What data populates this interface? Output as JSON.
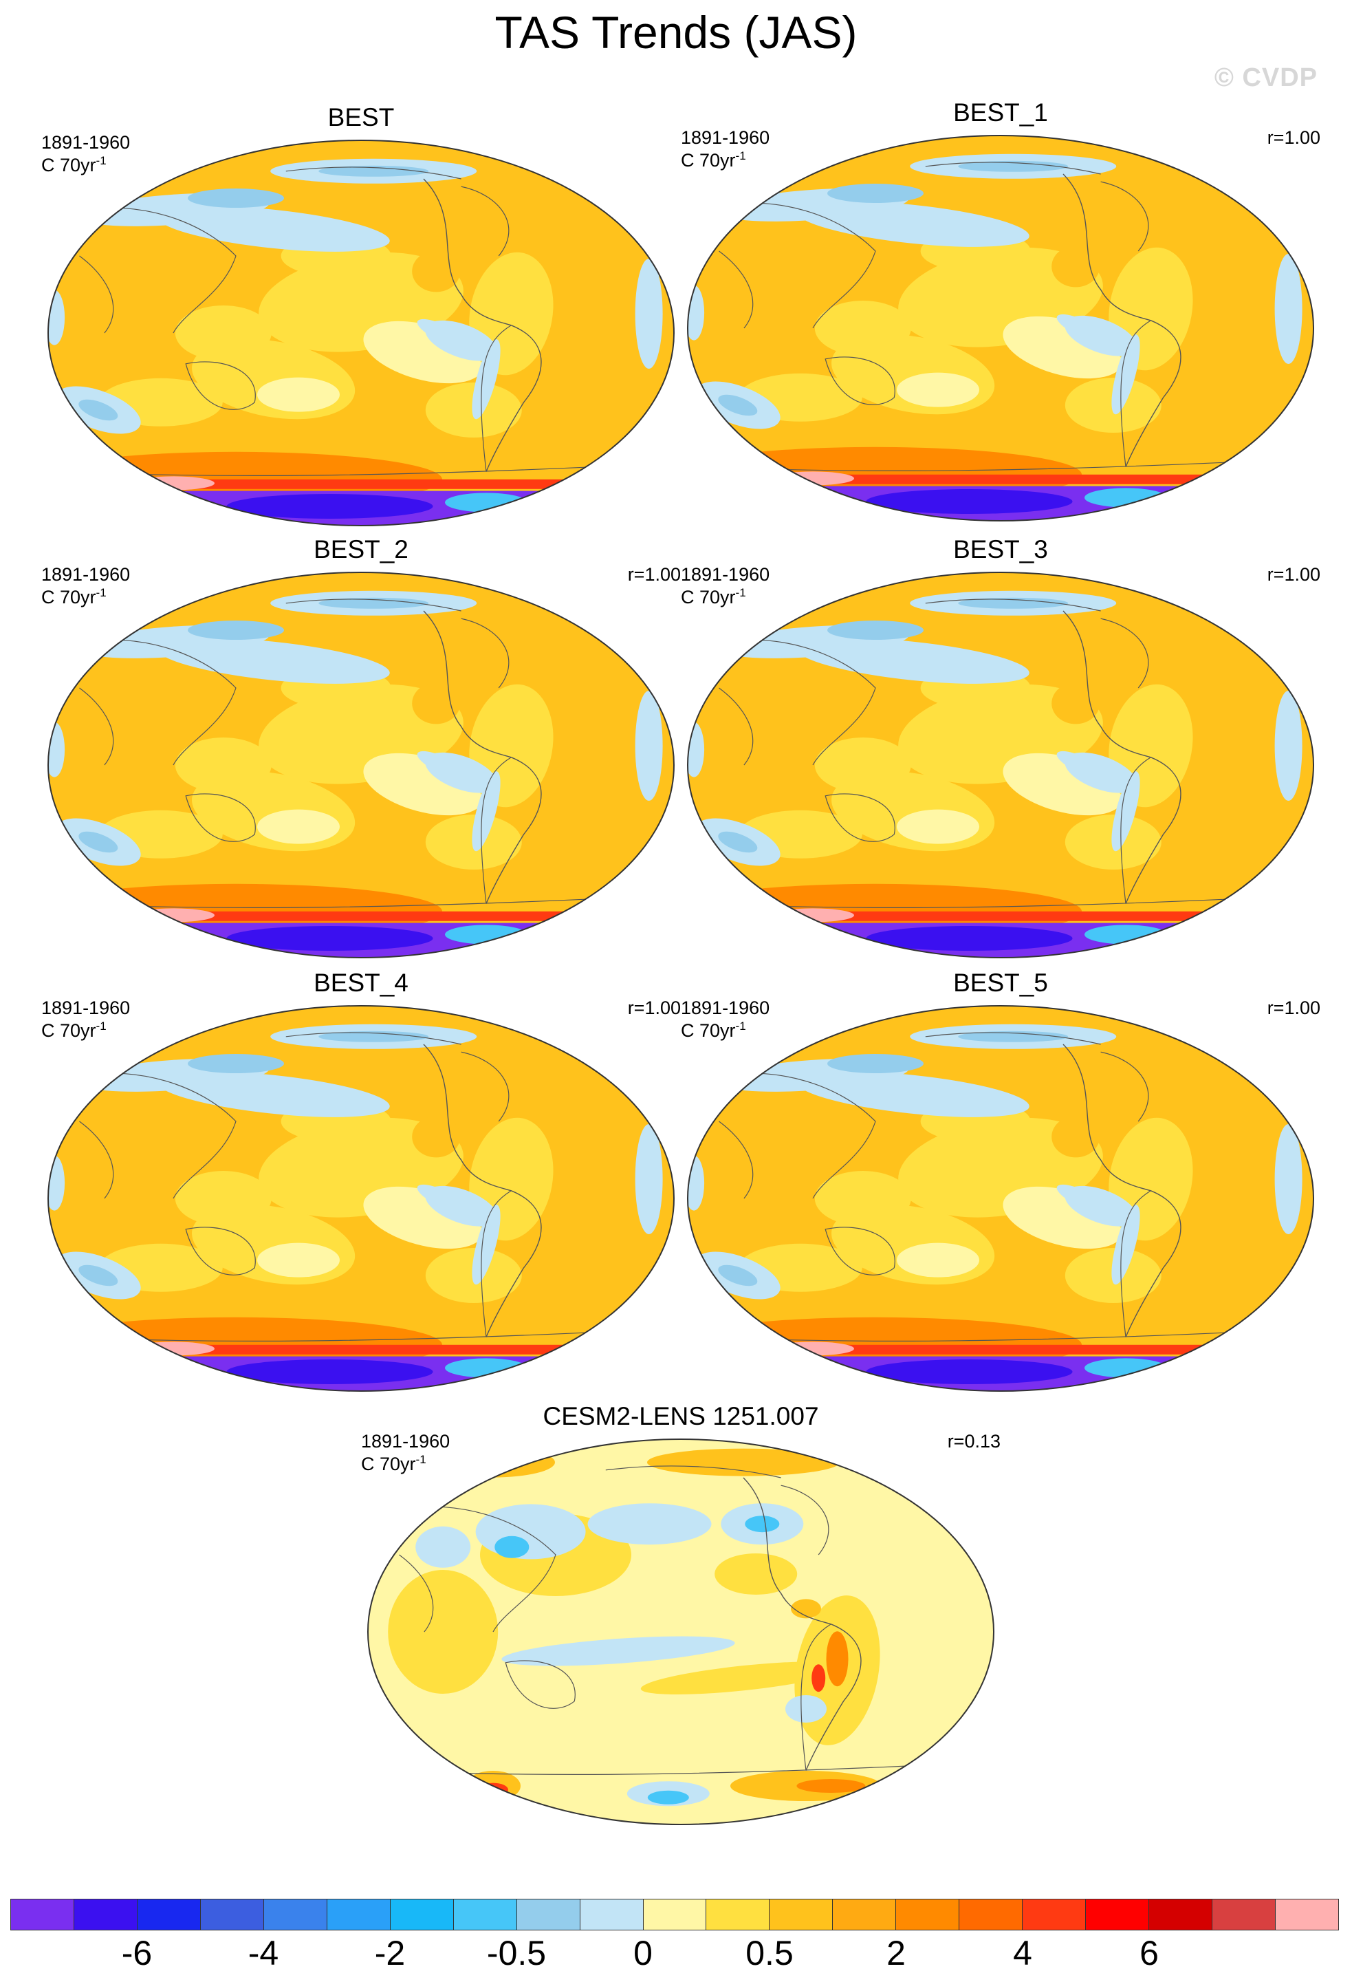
{
  "title": "TAS Trends (JAS)",
  "watermark": "© CVDP",
  "panels": [
    {
      "id": "best",
      "title": "BEST",
      "period": "1891-1960",
      "units_base": "C 70yr",
      "units_exp": "-1",
      "corr": ""
    },
    {
      "id": "best1",
      "title": "BEST_1",
      "period": "1891-1960",
      "units_base": "C 70yr",
      "units_exp": "-1",
      "corr": "r=1.00"
    },
    {
      "id": "best2",
      "title": "BEST_2",
      "period": "1891-1960",
      "units_base": "C 70yr",
      "units_exp": "-1",
      "corr": "r=1.00"
    },
    {
      "id": "best3",
      "title": "BEST_3",
      "period": "1891-1960",
      "units_base": "C 70yr",
      "units_exp": "-1",
      "corr": "r=1.00"
    },
    {
      "id": "best4",
      "title": "BEST_4",
      "period": "1891-1960",
      "units_base": "C 70yr",
      "units_exp": "-1",
      "corr": "r=1.00"
    },
    {
      "id": "best5",
      "title": "BEST_5",
      "period": "1891-1960",
      "units_base": "C 70yr",
      "units_exp": "-1",
      "corr": "r=1.00"
    },
    {
      "id": "cesm2",
      "title": "CESM2-LENS 1251.007",
      "period": "1891-1960",
      "units_base": "C 70yr",
      "units_exp": "-1",
      "corr": "r=0.13"
    }
  ],
  "colorbar": {
    "colors": [
      "#7a2ff0",
      "#3b10f0",
      "#1828f0",
      "#3c5ee0",
      "#3a82ec",
      "#2aa0f8",
      "#18b8f8",
      "#46c6f8",
      "#94cdec",
      "#c2e4f6",
      "#fff7a6",
      "#ffe040",
      "#ffc21c",
      "#ffaa12",
      "#ff8a00",
      "#ff6a00",
      "#ff3a12",
      "#ff0000",
      "#d40000",
      "#d84040",
      "#ffb0b0"
    ],
    "labels": [
      "-6",
      "-4",
      "-2",
      "-0.5",
      "0",
      "0.5",
      "2",
      "4",
      "6"
    ]
  },
  "colors": {
    "warm_ocean": "#ffc21c",
    "light_warm": "#ffe040",
    "pale_warm": "#fff7a6",
    "cool_light": "#c2e4f6",
    "cool": "#94cdec",
    "cool_mid": "#46c6f8",
    "strong_cool": "#3b10f0",
    "violet": "#7a2ff0",
    "hot": "#ff3a12"
  }
}
